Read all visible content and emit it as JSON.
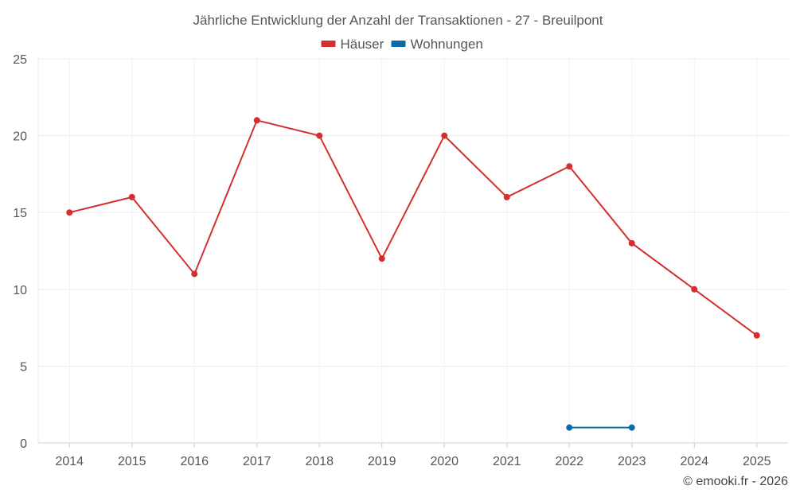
{
  "chart_data": {
    "type": "line",
    "title": "Jährliche Entwicklung der Anzahl der Transaktionen - 27 - Breuilpont",
    "categories": [
      "2014",
      "2015",
      "2016",
      "2017",
      "2018",
      "2019",
      "2020",
      "2021",
      "2022",
      "2023",
      "2024",
      "2025"
    ],
    "ylim": [
      0,
      25
    ],
    "yticks": [
      0,
      5,
      10,
      15,
      20,
      25
    ],
    "ytick_labels": [
      "0",
      "5",
      "10",
      "15",
      "20",
      "25"
    ],
    "grid": true,
    "legend": "top-center",
    "series": [
      {
        "name": "Häuser",
        "color": "#d32f2f",
        "values": [
          15,
          16,
          11,
          21,
          20,
          12,
          20,
          16,
          18,
          13,
          10,
          7
        ]
      },
      {
        "name": "Wohnungen",
        "color": "#0d6aa8",
        "values": [
          null,
          null,
          null,
          null,
          null,
          null,
          null,
          null,
          1,
          1,
          null,
          null
        ]
      }
    ],
    "credit": "© emooki.fr - 2026"
  }
}
